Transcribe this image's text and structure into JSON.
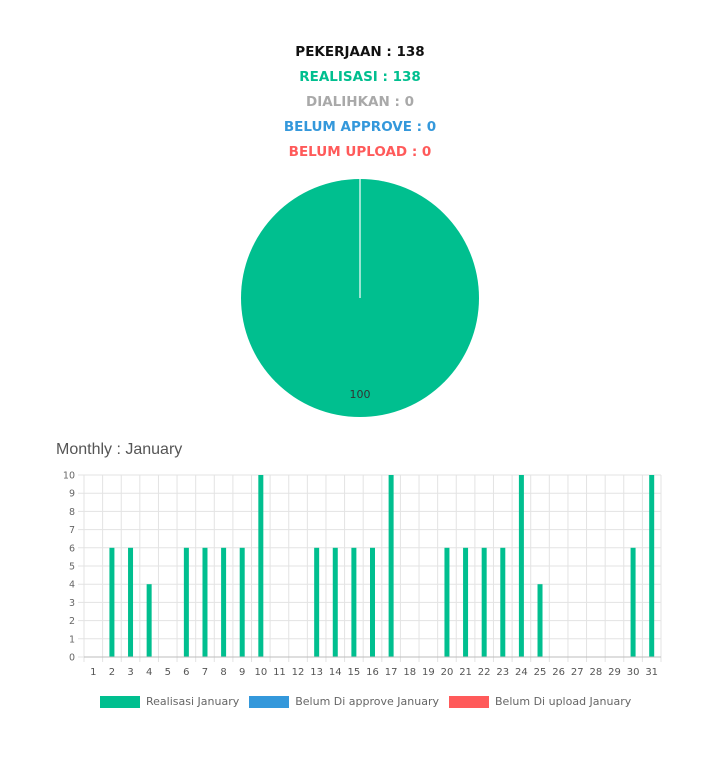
{
  "summary": {
    "pekerjaan": {
      "text": "PEKERJAAN : 138",
      "color": "#111111"
    },
    "realisasi": {
      "text": "REALISASI : 138",
      "color": "#00bf8f"
    },
    "dialihkan": {
      "text": "DIALIHKAN : 0",
      "color": "#a9a9a9"
    },
    "belum_approve": {
      "text": "BELUM APPROVE : 0",
      "color": "#3498db"
    },
    "belum_upload": {
      "text": "BELUM UPLOAD : 0",
      "color": "#ff5a5a"
    }
  },
  "monthly_title": "Monthly : January",
  "legend": [
    {
      "label": "Realisasi January",
      "color": "#00bf8f"
    },
    {
      "label": "Belum Di approve January",
      "color": "#3498db"
    },
    {
      "label": "Belum Di upload January",
      "color": "#ff5a5a"
    }
  ],
  "chart_data": [
    {
      "type": "pie",
      "slices": [
        {
          "label": "Realisasi",
          "value": 100,
          "color": "#00bf8f"
        }
      ],
      "data_labels": [
        "100"
      ]
    },
    {
      "type": "bar",
      "categories": [
        "1",
        "2",
        "3",
        "4",
        "5",
        "6",
        "7",
        "8",
        "9",
        "10",
        "11",
        "12",
        "13",
        "14",
        "15",
        "16",
        "17",
        "18",
        "19",
        "20",
        "21",
        "22",
        "23",
        "24",
        "25",
        "26",
        "27",
        "28",
        "29",
        "30",
        "31"
      ],
      "series": [
        {
          "name": "Realisasi January",
          "color": "#00bf8f",
          "values": [
            0,
            6,
            6,
            4,
            0,
            6,
            6,
            6,
            6,
            10,
            0,
            0,
            6,
            6,
            6,
            6,
            10,
            0,
            0,
            6,
            6,
            6,
            6,
            10,
            4,
            0,
            0,
            0,
            0,
            6,
            10
          ]
        },
        {
          "name": "Belum Di approve January",
          "color": "#3498db",
          "values": [
            0,
            0,
            0,
            0,
            0,
            0,
            0,
            0,
            0,
            0,
            0,
            0,
            0,
            0,
            0,
            0,
            0,
            0,
            0,
            0,
            0,
            0,
            0,
            0,
            0,
            0,
            0,
            0,
            0,
            0,
            0
          ]
        },
        {
          "name": "Belum Di upload January",
          "color": "#ff5a5a",
          "values": [
            0,
            0,
            0,
            0,
            0,
            0,
            0,
            0,
            0,
            0,
            0,
            0,
            0,
            0,
            0,
            0,
            0,
            0,
            0,
            0,
            0,
            0,
            0,
            0,
            0,
            0,
            0,
            0,
            0,
            0,
            0
          ]
        }
      ],
      "yticks": [
        "0",
        "1",
        "2",
        "3",
        "4",
        "5",
        "6",
        "7",
        "8",
        "9",
        "10"
      ],
      "ylim": [
        0,
        10
      ],
      "grid": true,
      "legend_position": "bottom"
    }
  ]
}
